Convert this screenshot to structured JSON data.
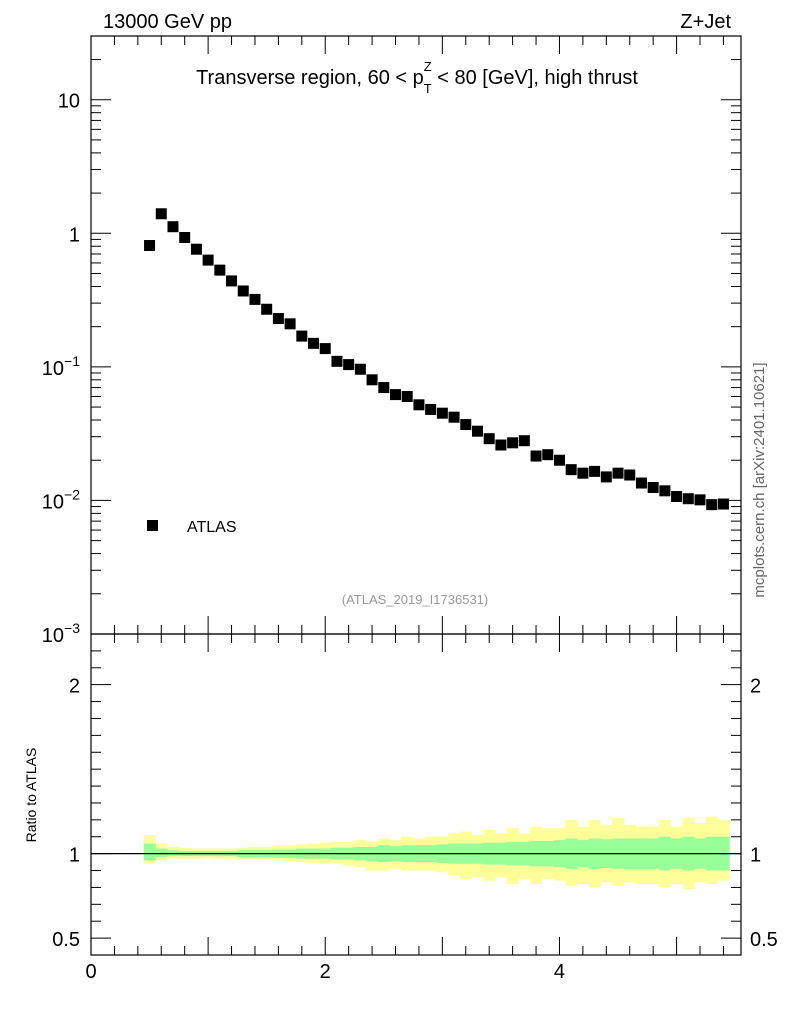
{
  "header": {
    "energy_label": "13000 GeV pp",
    "process_label": "Z+Jet",
    "watermark": "mcplots.cern.ch [arXiv:2401.10621]",
    "analysis_id": "(ATLAS_2019_I1736531)"
  },
  "chart_data": [
    {
      "type": "scatter",
      "title": "Transverse region, 60 < p_T^Z < 80 [GeV], high thrust",
      "title_parts": {
        "prefix": "Transverse region, 60 < p",
        "sub": "T",
        "sup": "Z",
        "suffix": " < 80 [GeV], high thrust"
      },
      "xlabel": "",
      "ylabel": "",
      "y_scale": "log",
      "xlim": [
        0,
        5.55
      ],
      "ylim": [
        0.001,
        30
      ],
      "y_tick_labels": [
        {
          "value": 10,
          "base": "10",
          "exp": ""
        },
        {
          "value": 1,
          "base": "1",
          "exp": ""
        },
        {
          "value": 0.1,
          "base": "10",
          "exp": "−1"
        },
        {
          "value": 0.01,
          "base": "10",
          "exp": "−2"
        },
        {
          "value": 0.001,
          "base": "10",
          "exp": "−3"
        }
      ],
      "legend": {
        "placement": "lower-left",
        "entries": [
          "ATLAS"
        ]
      },
      "series": [
        {
          "name": "ATLAS",
          "color": "#000000",
          "x": [
            0.5,
            0.6,
            0.7,
            0.8,
            0.9,
            1.0,
            1.1,
            1.2,
            1.3,
            1.4,
            1.5,
            1.6,
            1.7,
            1.8,
            1.9,
            2.0,
            2.1,
            2.2,
            2.3,
            2.4,
            2.5,
            2.6,
            2.7,
            2.8,
            2.9,
            3.0,
            3.1,
            3.2,
            3.3,
            3.4,
            3.5,
            3.6,
            3.7,
            3.8,
            3.9,
            4.0,
            4.1,
            4.2,
            4.3,
            4.4,
            4.5,
            4.6,
            4.7,
            4.8,
            4.9,
            5.0,
            5.1,
            5.2,
            5.3,
            5.4
          ],
          "y": [
            0.81,
            1.4,
            1.12,
            0.93,
            0.76,
            0.63,
            0.53,
            0.44,
            0.37,
            0.32,
            0.27,
            0.23,
            0.21,
            0.17,
            0.15,
            0.137,
            0.11,
            0.104,
            0.096,
            0.08,
            0.07,
            0.062,
            0.06,
            0.052,
            0.048,
            0.045,
            0.042,
            0.037,
            0.033,
            0.029,
            0.026,
            0.027,
            0.028,
            0.0215,
            0.022,
            0.02,
            0.017,
            0.016,
            0.0165,
            0.015,
            0.016,
            0.0155,
            0.0135,
            0.0125,
            0.0118,
            0.0107,
            0.0103,
            0.0101,
            0.0093,
            0.0094
          ]
        }
      ]
    },
    {
      "type": "area",
      "title": "",
      "xlabel": "",
      "ylabel": "Ratio to ATLAS",
      "xlim": [
        0,
        5.55
      ],
      "ylim": [
        0.4,
        2.3
      ],
      "x_ticks": [
        0,
        2,
        4
      ],
      "y_ticks": [
        0.5,
        1,
        2
      ],
      "reference_line": 1,
      "bin_edges": [
        0.45,
        0.55,
        0.65,
        0.75,
        0.85,
        0.95,
        1.05,
        1.15,
        1.25,
        1.35,
        1.45,
        1.55,
        1.65,
        1.75,
        1.85,
        1.95,
        2.05,
        2.15,
        2.25,
        2.35,
        2.45,
        2.55,
        2.65,
        2.75,
        2.85,
        2.95,
        3.05,
        3.15,
        3.25,
        3.35,
        3.45,
        3.55,
        3.65,
        3.75,
        3.85,
        3.95,
        4.05,
        4.15,
        4.25,
        4.35,
        4.45,
        4.55,
        4.65,
        4.75,
        4.85,
        4.95,
        5.05,
        5.15,
        5.25,
        5.35,
        5.45
      ],
      "bands": [
        {
          "name": "total uncertainty",
          "color": "#ffff99",
          "up": [
            1.11,
            1.06,
            1.04,
            1.035,
            1.03,
            1.03,
            1.03,
            1.03,
            1.035,
            1.04,
            1.04,
            1.05,
            1.05,
            1.055,
            1.06,
            1.065,
            1.07,
            1.07,
            1.08,
            1.07,
            1.09,
            1.08,
            1.1,
            1.09,
            1.1,
            1.1,
            1.12,
            1.13,
            1.11,
            1.14,
            1.12,
            1.15,
            1.12,
            1.16,
            1.15,
            1.15,
            1.2,
            1.16,
            1.2,
            1.17,
            1.21,
            1.17,
            1.16,
            1.16,
            1.2,
            1.16,
            1.21,
            1.18,
            1.22,
            1.2
          ],
          "down": [
            0.94,
            0.96,
            0.97,
            0.97,
            0.97,
            0.975,
            0.97,
            0.97,
            0.965,
            0.965,
            0.965,
            0.96,
            0.955,
            0.95,
            0.945,
            0.94,
            0.94,
            0.93,
            0.92,
            0.9,
            0.9,
            0.91,
            0.9,
            0.9,
            0.9,
            0.89,
            0.87,
            0.85,
            0.86,
            0.84,
            0.86,
            0.82,
            0.85,
            0.82,
            0.85,
            0.84,
            0.81,
            0.82,
            0.8,
            0.83,
            0.81,
            0.83,
            0.82,
            0.82,
            0.8,
            0.82,
            0.79,
            0.83,
            0.82,
            0.84
          ]
        },
        {
          "name": "statistical uncertainty",
          "color": "#99ff99",
          "up": [
            1.06,
            1.03,
            1.02,
            1.015,
            1.015,
            1.015,
            1.015,
            1.015,
            1.02,
            1.02,
            1.02,
            1.025,
            1.025,
            1.03,
            1.03,
            1.03,
            1.035,
            1.035,
            1.04,
            1.04,
            1.05,
            1.045,
            1.05,
            1.05,
            1.05,
            1.055,
            1.06,
            1.06,
            1.06,
            1.065,
            1.065,
            1.07,
            1.07,
            1.075,
            1.075,
            1.08,
            1.09,
            1.08,
            1.09,
            1.085,
            1.09,
            1.09,
            1.09,
            1.09,
            1.1,
            1.09,
            1.1,
            1.09,
            1.1,
            1.1
          ],
          "down": [
            0.96,
            0.98,
            0.985,
            0.985,
            0.985,
            0.985,
            0.985,
            0.985,
            0.98,
            0.98,
            0.98,
            0.975,
            0.975,
            0.97,
            0.97,
            0.97,
            0.965,
            0.965,
            0.96,
            0.955,
            0.95,
            0.955,
            0.95,
            0.95,
            0.95,
            0.945,
            0.94,
            0.94,
            0.94,
            0.935,
            0.935,
            0.93,
            0.93,
            0.925,
            0.925,
            0.92,
            0.91,
            0.92,
            0.91,
            0.915,
            0.91,
            0.91,
            0.91,
            0.91,
            0.9,
            0.91,
            0.9,
            0.91,
            0.9,
            0.9
          ]
        }
      ]
    }
  ]
}
